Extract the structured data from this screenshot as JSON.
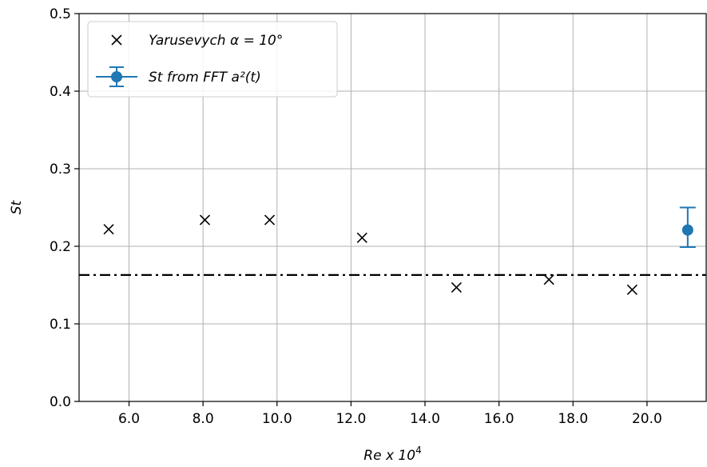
{
  "chart_data": {
    "type": "scatter",
    "xlabel": "Re x 10",
    "xlabel_superscript": "4",
    "ylabel": "St",
    "xlim": [
      4.65,
      21.6
    ],
    "ylim": [
      0.0,
      0.5
    ],
    "xticks": [
      "6.0",
      "8.0",
      "10.0",
      "12.0",
      "14.0",
      "16.0",
      "18.0",
      "20.0"
    ],
    "xtick_values": [
      6,
      8,
      10,
      12,
      14,
      16,
      18,
      20
    ],
    "yticks": [
      "0.0",
      "0.1",
      "0.2",
      "0.3",
      "0.4",
      "0.5"
    ],
    "ytick_values": [
      0.0,
      0.1,
      0.2,
      0.3,
      0.4,
      0.5
    ],
    "grid": true,
    "legend_position": "top-left",
    "reference_line": {
      "y": 0.163,
      "style": "dash-dot",
      "color": "#000000"
    },
    "series": [
      {
        "name": "Yarusevych α = 10°",
        "marker": "x",
        "color": "#000000",
        "x": [
          5.45,
          8.05,
          9.8,
          12.3,
          14.85,
          17.35,
          19.6
        ],
        "y": [
          0.222,
          0.234,
          0.234,
          0.211,
          0.147,
          0.157,
          0.144
        ]
      },
      {
        "name": "St from FFT a²(t)",
        "marker": "o",
        "color": "#1f77b4",
        "errorbar": true,
        "x": [
          21.1
        ],
        "y": [
          0.221
        ],
        "yerr_low": [
          0.199
        ],
        "yerr_high": [
          0.25
        ]
      }
    ]
  }
}
